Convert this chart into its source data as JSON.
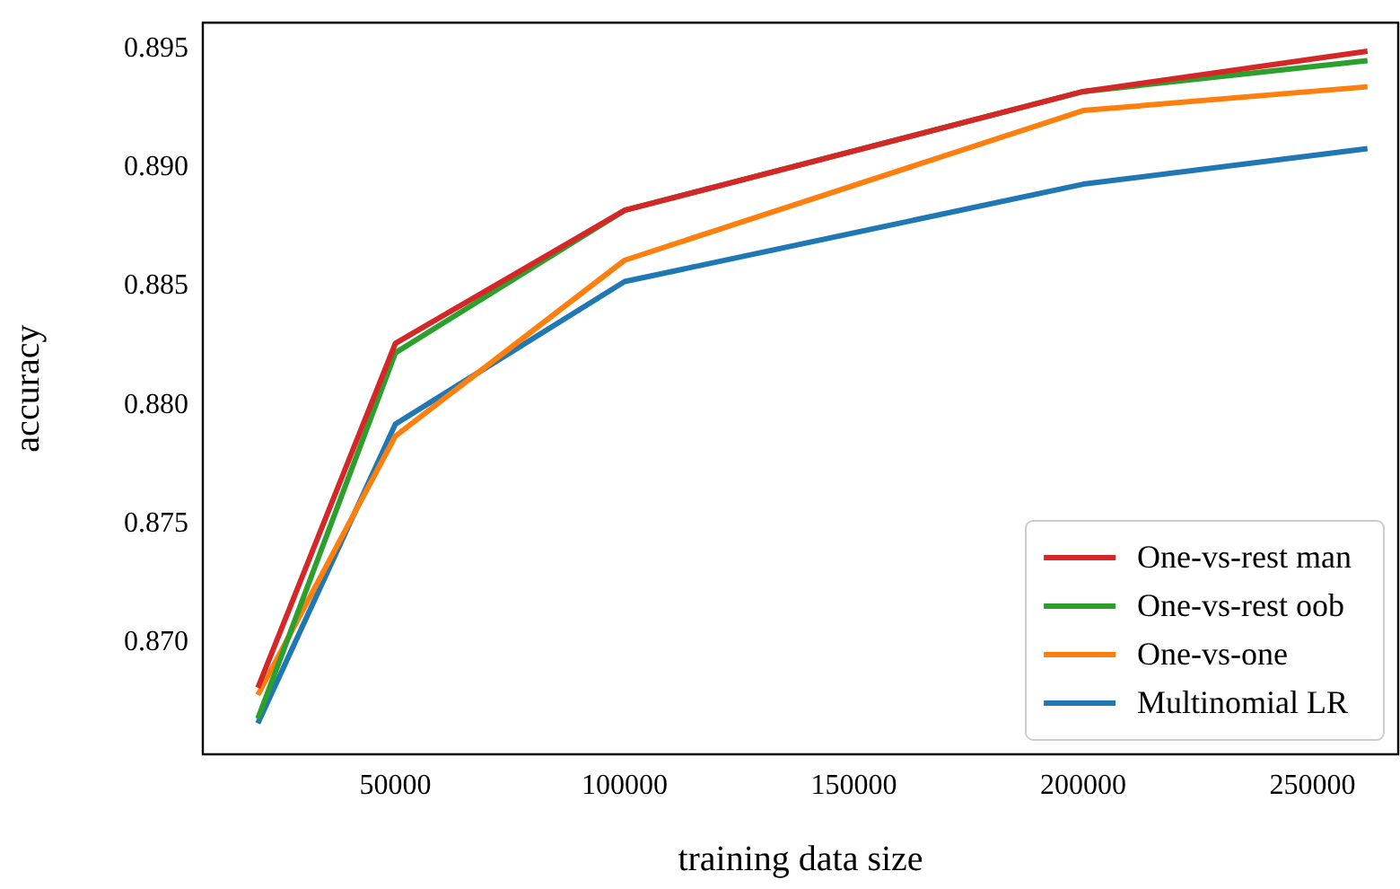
{
  "chart_data": {
    "type": "line",
    "xlabel": "training data size",
    "ylabel": "accuracy",
    "x": [
      20000,
      50000,
      100000,
      200000,
      262000
    ],
    "series": [
      {
        "name": "One-vs-rest man",
        "color": "#d62728",
        "values": [
          0.8681,
          0.8826,
          0.8882,
          0.8932,
          0.8949
        ]
      },
      {
        "name": "One-vs-rest oob",
        "color": "#2ca02c",
        "values": [
          0.8668,
          0.8822,
          0.8882,
          0.8932,
          0.8945
        ]
      },
      {
        "name": "One-vs-one",
        "color": "#ff7f0e",
        "values": [
          0.8678,
          0.8787,
          0.8861,
          0.8924,
          0.8934
        ]
      },
      {
        "name": "Multinomial LR",
        "color": "#1f77b4",
        "values": [
          0.8666,
          0.8792,
          0.8852,
          0.8893,
          0.8908
        ]
      }
    ],
    "xlim": [
      8000,
      268700
    ],
    "xticks": [
      50000,
      100000,
      150000,
      200000,
      250000
    ],
    "ylim": [
      0.8653,
      0.8961
    ],
    "yticks": [
      {
        "value": 0.87,
        "label": "0.870"
      },
      0.875,
      {
        "value": 0.88,
        "label": "0.880"
      },
      0.885,
      {
        "value": 0.89,
        "label": "0.890"
      },
      0.895
    ],
    "grid": false,
    "legend": "bottom right",
    "marker": "none",
    "line_style": "solid"
  }
}
